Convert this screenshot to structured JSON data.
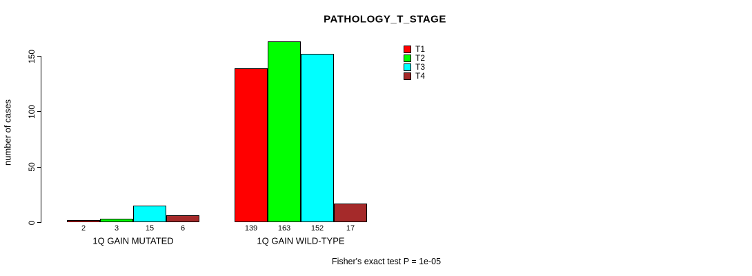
{
  "chart_data": {
    "type": "bar",
    "title": "PATHOLOGY_T_STAGE",
    "ylabel": "number of cases",
    "ylim": [
      0,
      150
    ],
    "yticks": [
      0,
      50,
      100,
      150
    ],
    "grid": false,
    "legend_position": "top-right",
    "categories": [
      "1Q GAIN MUTATED",
      "1Q GAIN WILD-TYPE"
    ],
    "series": [
      {
        "name": "T1",
        "color": "#FF0000",
        "values": [
          2,
          139
        ]
      },
      {
        "name": "T2",
        "color": "#00FF00",
        "values": [
          3,
          163
        ]
      },
      {
        "name": "T3",
        "color": "#00FFFF",
        "values": [
          15,
          152
        ]
      },
      {
        "name": "T4",
        "color": "#A52A2A",
        "values": [
          6,
          17
        ]
      }
    ],
    "bar_value_labels": [
      [
        "2",
        "3",
        "15",
        "6"
      ],
      [
        "139",
        "163",
        "152",
        "17"
      ]
    ],
    "footer": "Fisher's exact test P = 1e-05"
  }
}
